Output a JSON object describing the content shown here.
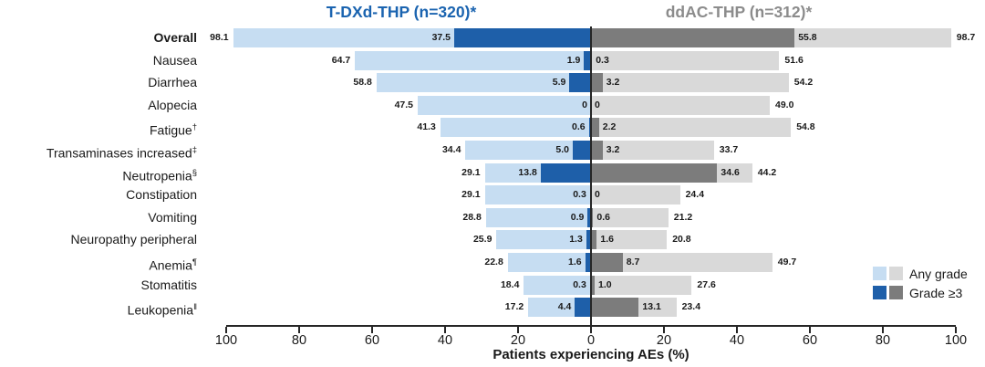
{
  "figure": {
    "headers": {
      "left": "T-DXd-THP (n=320)*",
      "right": "ddAC-THP (n=312)*"
    },
    "axis": {
      "label": "Patients experiencing AEs (%)",
      "tick_labels": [
        "100",
        "80",
        "60",
        "40",
        "20",
        "0",
        "20",
        "40",
        "60",
        "80",
        "100"
      ]
    },
    "legend": {
      "any_grade": "Any grade",
      "grade_ge3": "Grade ≥3"
    }
  },
  "colors": {
    "left_any_grade": "#C6DDF2",
    "left_grade3": "#1E5FA9",
    "right_any_grade": "#D9D9D9",
    "right_grade3": "#7C7C7C",
    "header_left": "#1B64B0",
    "header_right": "#8C8C8C",
    "axis_line": "#262626"
  },
  "chart_data": {
    "type": "bar",
    "subtype": "diverging horizontal tornado, overlaid any-grade vs grade>=3",
    "title": "",
    "xlabel": "Patients experiencing AEs (%)",
    "x_range_each_side": [
      0,
      100
    ],
    "x_ticks_each_side": [
      0,
      20,
      40,
      60,
      80,
      100
    ],
    "left_arm": "T-DXd-THP (n=320)*",
    "right_arm": "ddAC-THP (n=312)*",
    "legend_entries": [
      "Any grade",
      "Grade ≥3"
    ],
    "legend_position": "bottom-right",
    "rows": [
      {
        "category": "Overall",
        "sup": "",
        "bold": true,
        "tdxd_any_grade": "98.1",
        "tdxd_grade3": "37.5",
        "ddac_grade3": "55.8",
        "ddac_any_grade": "98.7"
      },
      {
        "category": "Nausea",
        "sup": "",
        "bold": false,
        "tdxd_any_grade": "64.7",
        "tdxd_grade3": "1.9",
        "ddac_grade3": "0.3",
        "ddac_any_grade": "51.6"
      },
      {
        "category": "Diarrhea",
        "sup": "",
        "bold": false,
        "tdxd_any_grade": "58.8",
        "tdxd_grade3": "5.9",
        "ddac_grade3": "3.2",
        "ddac_any_grade": "54.2"
      },
      {
        "category": "Alopecia",
        "sup": "",
        "bold": false,
        "tdxd_any_grade": "47.5",
        "tdxd_grade3": "0",
        "ddac_grade3": "0",
        "ddac_any_grade": "49.0"
      },
      {
        "category": "Fatigue",
        "sup": "†",
        "bold": false,
        "tdxd_any_grade": "41.3",
        "tdxd_grade3": "0.6",
        "ddac_grade3": "2.2",
        "ddac_any_grade": "54.8"
      },
      {
        "category": "Transaminases increased",
        "sup": "‡",
        "bold": false,
        "tdxd_any_grade": "34.4",
        "tdxd_grade3": "5.0",
        "ddac_grade3": "3.2",
        "ddac_any_grade": "33.7"
      },
      {
        "category": "Neutropenia",
        "sup": "§",
        "bold": false,
        "tdxd_any_grade": "29.1",
        "tdxd_grade3": "13.8",
        "ddac_grade3": "34.6",
        "ddac_any_grade": "44.2"
      },
      {
        "category": "Constipation",
        "sup": "",
        "bold": false,
        "tdxd_any_grade": "29.1",
        "tdxd_grade3": "0.3",
        "ddac_grade3": "0",
        "ddac_any_grade": "24.4"
      },
      {
        "category": "Vomiting",
        "sup": "",
        "bold": false,
        "tdxd_any_grade": "28.8",
        "tdxd_grade3": "0.9",
        "ddac_grade3": "0.6",
        "ddac_any_grade": "21.2"
      },
      {
        "category": "Neuropathy peripheral",
        "sup": "",
        "bold": false,
        "tdxd_any_grade": "25.9",
        "tdxd_grade3": "1.3",
        "ddac_grade3": "1.6",
        "ddac_any_grade": "20.8"
      },
      {
        "category": "Anemia",
        "sup": "¶",
        "bold": false,
        "tdxd_any_grade": "22.8",
        "tdxd_grade3": "1.6",
        "ddac_grade3": "8.7",
        "ddac_any_grade": "49.7"
      },
      {
        "category": "Stomatitis",
        "sup": "",
        "bold": false,
        "tdxd_any_grade": "18.4",
        "tdxd_grade3": "0.3",
        "ddac_grade3": "1.0",
        "ddac_any_grade": "27.6"
      },
      {
        "category": "Leukopenia",
        "sup": "‖",
        "bold": false,
        "tdxd_any_grade": "17.2",
        "tdxd_grade3": "4.4",
        "ddac_grade3": "13.1",
        "ddac_any_grade": "23.4"
      }
    ]
  }
}
